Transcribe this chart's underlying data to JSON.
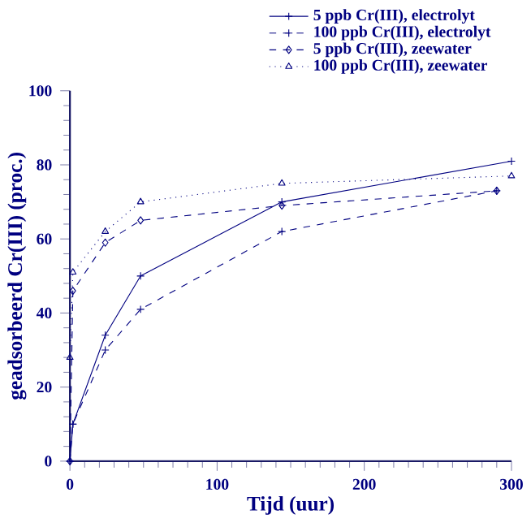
{
  "chart_data": {
    "type": "line",
    "xlabel": "Tijd (uur)",
    "ylabel": "geadsorbeerd Cr(III) (proc.)",
    "xlim": [
      0,
      300
    ],
    "ylim": [
      0,
      100
    ],
    "xticks": [
      0,
      100,
      200,
      300
    ],
    "yticks": [
      0,
      20,
      40,
      60,
      80,
      100
    ],
    "grid": false,
    "legend": "top right",
    "series": [
      {
        "name": "5 ppb Cr(III), electrolyt",
        "color": "#000080",
        "marker": "cross",
        "line_style": "solid",
        "x": [
          0,
          2,
          24,
          48,
          144,
          300
        ],
        "values": [
          0,
          10,
          34,
          50,
          70,
          81
        ]
      },
      {
        "name": "100 ppb Cr(III), electrolyt",
        "color": "#000080",
        "marker": "cross",
        "line_style": "dashed",
        "x": [
          0,
          2,
          24,
          48,
          144,
          290
        ],
        "values": [
          0,
          10,
          30,
          41,
          62,
          73
        ]
      },
      {
        "name": "5 ppb Cr(III), zeewater",
        "color": "#000080",
        "marker": "diamond",
        "line_style": "dashed",
        "x": [
          0,
          2,
          24,
          48,
          144,
          290
        ],
        "values": [
          0,
          46,
          59,
          65,
          69,
          73
        ]
      },
      {
        "name": "100 ppb Cr(III), zeewater",
        "color": "#000080",
        "marker": "triangle",
        "line_style": "dotted",
        "x": [
          0,
          2,
          24,
          48,
          144,
          300
        ],
        "values": [
          28,
          51,
          62,
          70,
          75,
          77
        ]
      }
    ]
  }
}
